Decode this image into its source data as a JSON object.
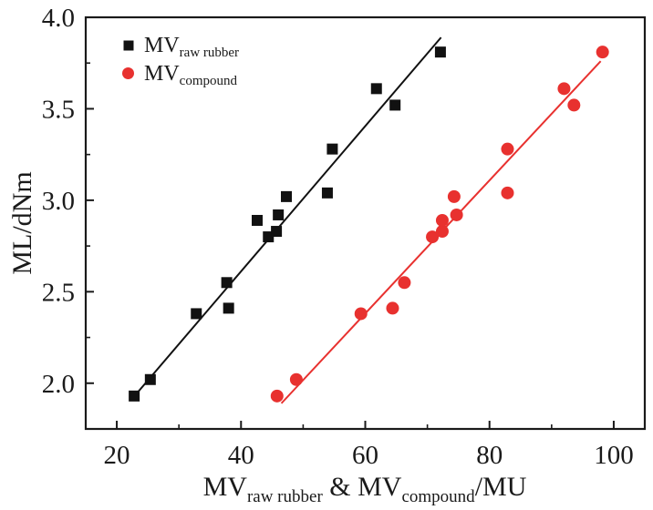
{
  "chart_data": {
    "type": "scatter",
    "title": "",
    "xlabel": {
      "main": "MV",
      "sub1": "raw rubber",
      "mid": " & MV",
      "sub2": "compound",
      "tail": "/MU"
    },
    "ylabel": "ML/dNm",
    "xlim": [
      15,
      105
    ],
    "ylim": [
      1.75,
      4.0
    ],
    "x_ticks": [
      20,
      40,
      60,
      80,
      100
    ],
    "x_tick_labels": [
      "20",
      "40",
      "60",
      "80",
      "100"
    ],
    "x_minor_ticks": [
      30,
      50,
      70,
      90
    ],
    "y_ticks": [
      2.0,
      2.5,
      3.0,
      3.5,
      4.0
    ],
    "y_tick_labels": [
      "2.0",
      "2.5",
      "3.0",
      "3.5",
      "4.0"
    ],
    "y_minor_ticks": [
      2.25,
      2.75,
      3.25,
      3.75
    ],
    "grid": false,
    "legend_position": "top-left",
    "series": [
      {
        "name": "MV raw rubber",
        "legend_main": "MV",
        "legend_sub": "raw rubber",
        "marker": "square",
        "color": "#111111",
        "points": [
          [
            22.8,
            1.93
          ],
          [
            25.4,
            2.02
          ],
          [
            32.8,
            2.38
          ],
          [
            37.7,
            2.55
          ],
          [
            38.0,
            2.41
          ],
          [
            42.6,
            2.89
          ],
          [
            44.4,
            2.8
          ],
          [
            45.7,
            2.83
          ],
          [
            46.0,
            2.92
          ],
          [
            47.3,
            3.02
          ],
          [
            53.9,
            3.04
          ],
          [
            54.7,
            3.28
          ],
          [
            61.8,
            3.61
          ],
          [
            64.8,
            3.52
          ],
          [
            72.1,
            3.81
          ]
        ],
        "fit_line": [
          [
            22.6,
            1.92
          ],
          [
            72.2,
            3.89
          ]
        ]
      },
      {
        "name": "MV compound",
        "legend_main": "MV",
        "legend_sub": "compound",
        "marker": "circle",
        "color": "#e8312f",
        "points": [
          [
            45.8,
            1.93
          ],
          [
            48.9,
            2.02
          ],
          [
            59.3,
            2.38
          ],
          [
            66.3,
            2.55
          ],
          [
            64.4,
            2.41
          ],
          [
            70.8,
            2.8
          ],
          [
            72.4,
            2.83
          ],
          [
            72.4,
            2.89
          ],
          [
            74.3,
            3.02
          ],
          [
            74.7,
            2.92
          ],
          [
            82.9,
            3.04
          ],
          [
            82.9,
            3.28
          ],
          [
            92.0,
            3.61
          ],
          [
            93.6,
            3.52
          ],
          [
            98.2,
            3.81
          ]
        ],
        "fit_line": [
          [
            46.5,
            1.89
          ],
          [
            97.9,
            3.76
          ]
        ]
      }
    ]
  }
}
